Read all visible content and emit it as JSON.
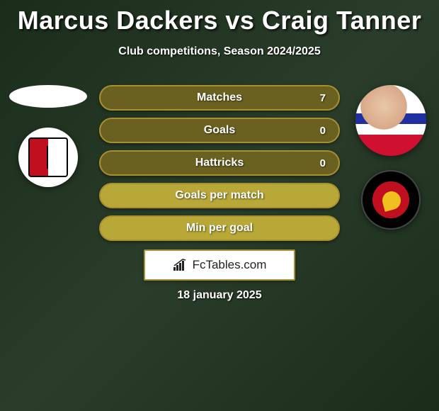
{
  "title": "Marcus Dackers vs Craig Tanner",
  "subtitle": "Club competitions, Season 2024/2025",
  "date": "18 january 2025",
  "brand": "FcTables.com",
  "colors": {
    "pill_border": "#a89030",
    "pill_bg_dark": "#6a6020",
    "pill_bg_light": "#b8a838",
    "title_color": "#ffffff",
    "text_color": "#ffffff"
  },
  "left": {
    "player": "Marcus Dackers",
    "club": "Woking"
  },
  "right": {
    "player": "Craig Tanner",
    "club": "Ebbsfleet United"
  },
  "stats": [
    {
      "label": "Matches",
      "value": "7",
      "shade": "dark"
    },
    {
      "label": "Goals",
      "value": "0",
      "shade": "dark"
    },
    {
      "label": "Hattricks",
      "value": "0",
      "shade": "dark"
    },
    {
      "label": "Goals per match",
      "value": "",
      "shade": "light"
    },
    {
      "label": "Min per goal",
      "value": "",
      "shade": "light"
    }
  ]
}
